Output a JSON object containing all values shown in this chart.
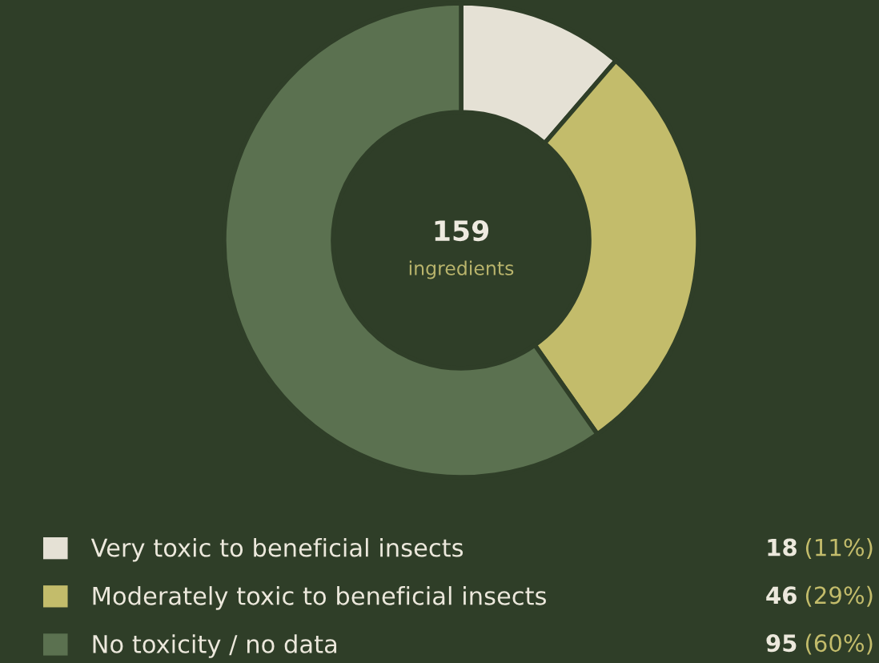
{
  "chart_data": {
    "type": "donut",
    "categories": [
      "Very toxic to beneficial insects",
      "Moderately toxic to beneficial insects",
      "No toxicity / no data"
    ],
    "values": [
      18,
      46,
      95
    ],
    "colors": [
      "#e5e1d5",
      "#c3bc6b",
      "#5b7150"
    ],
    "value_labels": [
      "18 (11%)",
      "46 (29%)",
      "95 (60%)"
    ],
    "annotations": [
      "159",
      "ingredients"
    ],
    "legend": "bottom"
  }
}
